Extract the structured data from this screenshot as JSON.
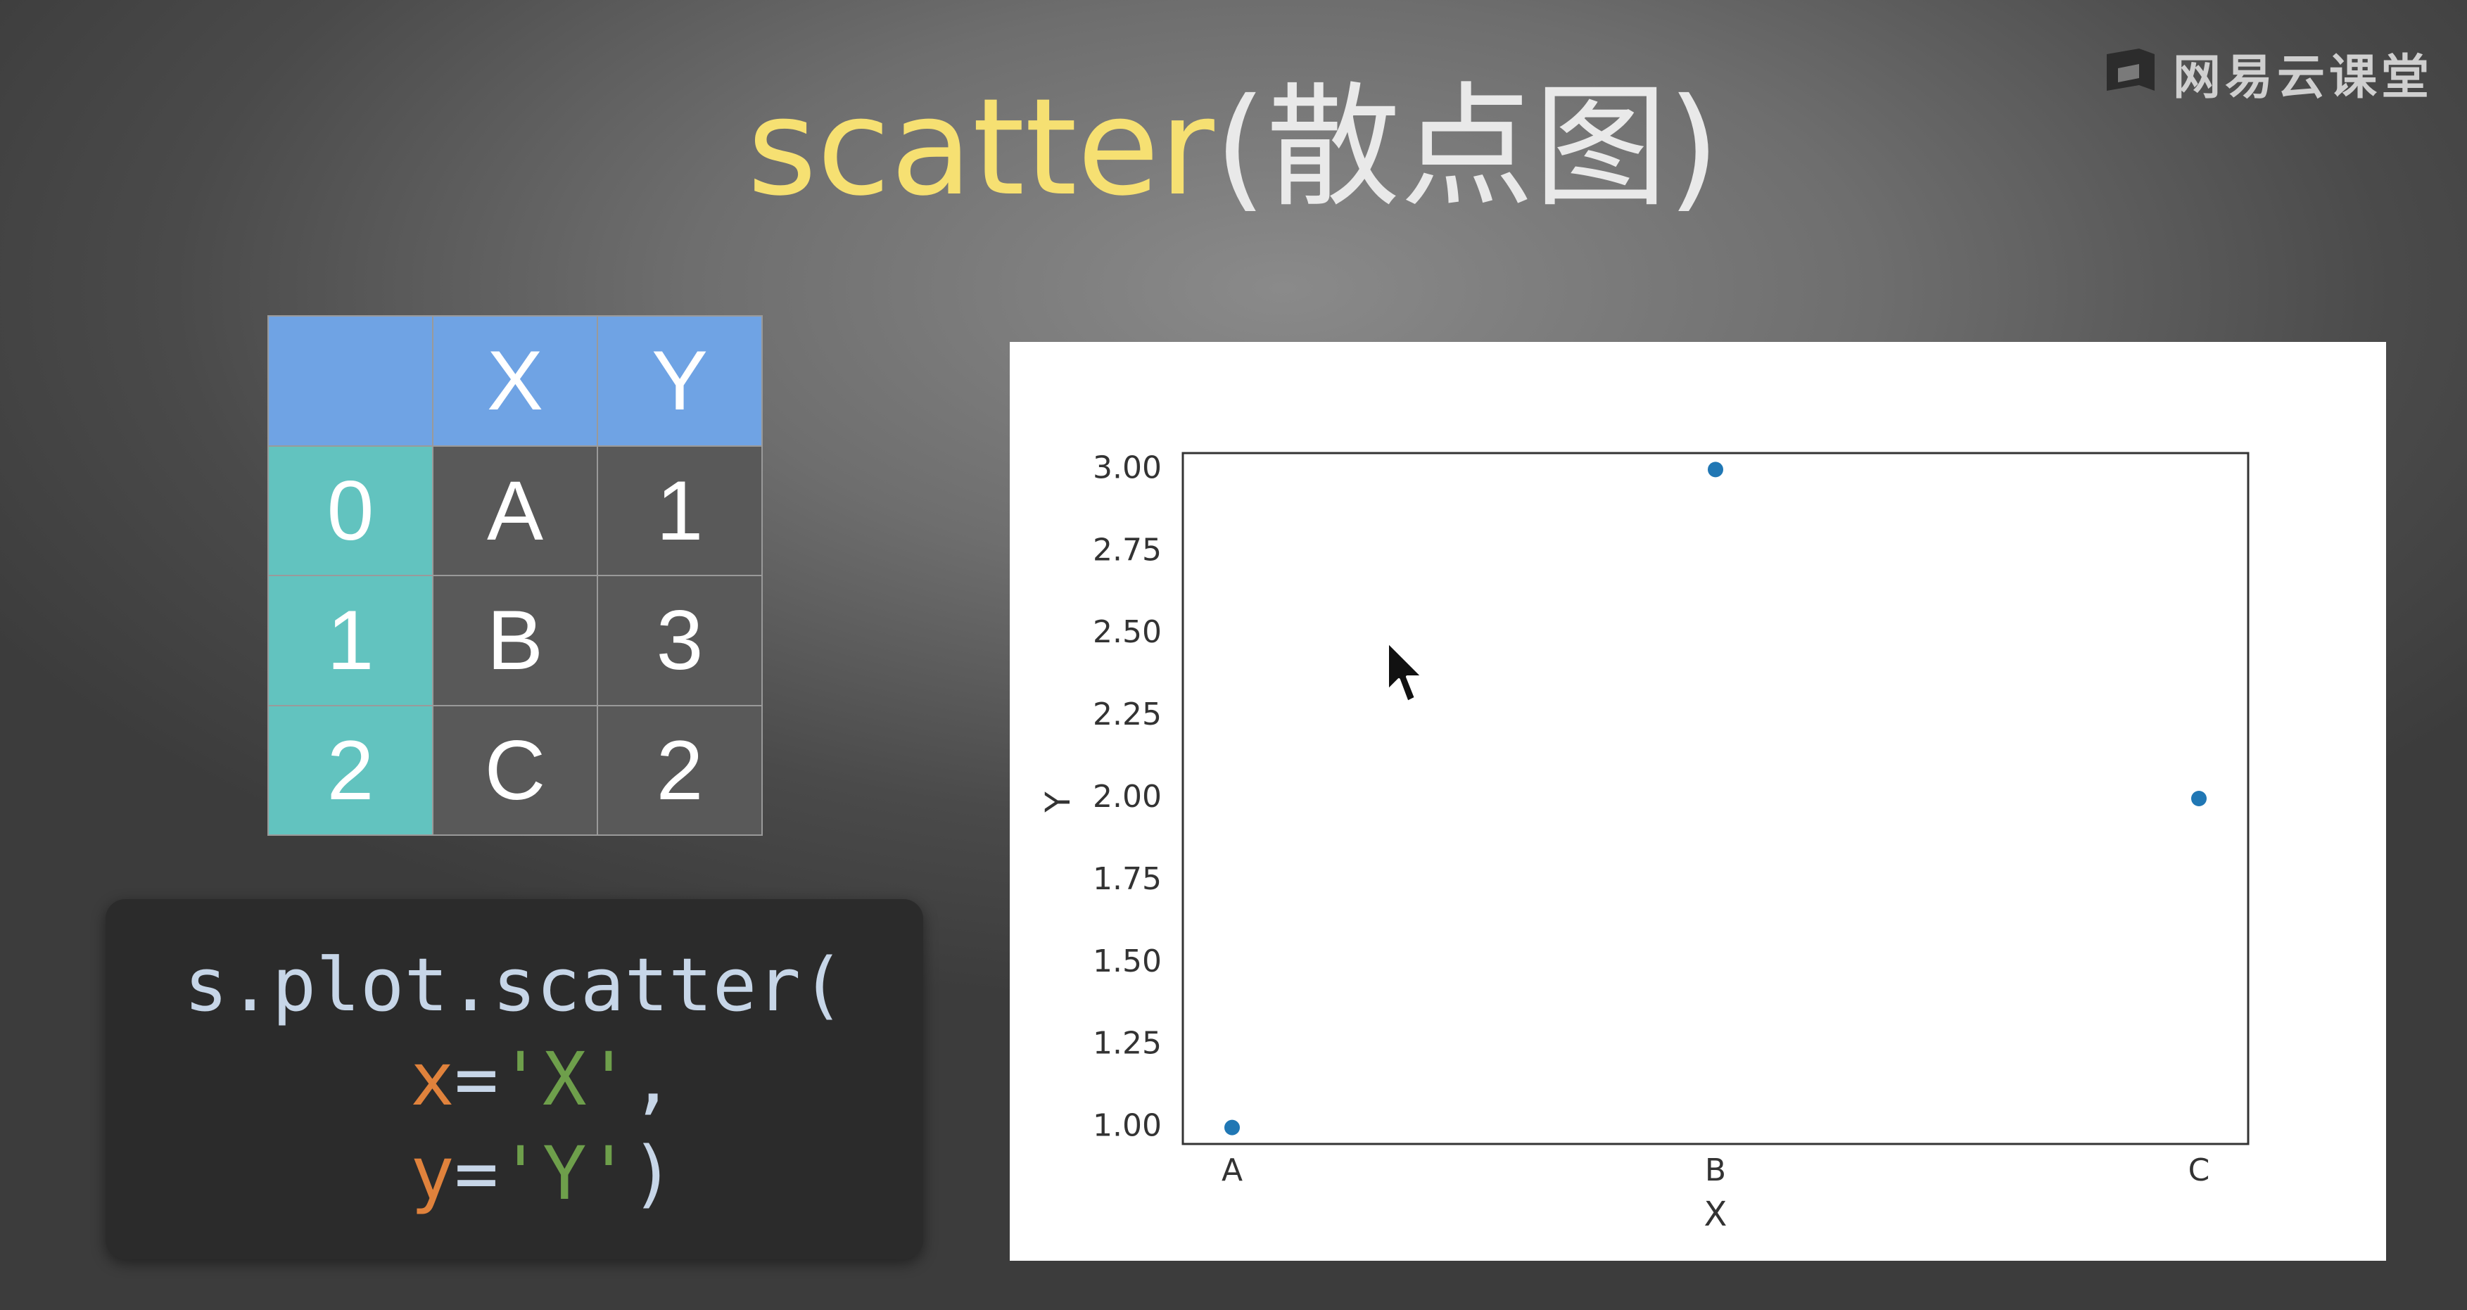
{
  "logo": {
    "text": "网易云课堂",
    "icon": "book-logo-icon"
  },
  "title": {
    "main": "scatter",
    "paren": "(散点图)"
  },
  "table": {
    "columns": [
      "",
      "X",
      "Y"
    ],
    "rows": [
      {
        "index": "0",
        "X": "A",
        "Y": "1"
      },
      {
        "index": "1",
        "X": "B",
        "Y": "3"
      },
      {
        "index": "2",
        "X": "C",
        "Y": "2"
      }
    ]
  },
  "code": {
    "line1": "s.plot.scatter(",
    "line2": {
      "kw": "x",
      "eq": "=",
      "str": "'X'",
      "tail": ","
    },
    "line3": {
      "kw": "y",
      "eq": "=",
      "str": "'Y'",
      "tail": ")"
    }
  },
  "colors": {
    "title": "#f6e072",
    "table_header": "#6fa3e4",
    "table_index": "#62c3bf",
    "point": "#2077b4"
  },
  "chart_data": {
    "type": "scatter",
    "x": [
      "A",
      "B",
      "C"
    ],
    "y": [
      1,
      3,
      2
    ],
    "xlabel": "X",
    "ylabel": "Y",
    "ylim": [
      0.95,
      3.05
    ],
    "yticks": [
      1.0,
      1.25,
      1.5,
      1.75,
      2.0,
      2.25,
      2.5,
      2.75,
      3.0
    ],
    "ytick_labels": [
      "1.00",
      "1.25",
      "1.50",
      "1.75",
      "2.00",
      "2.25",
      "2.50",
      "2.75",
      "3.00"
    ],
    "xtick_labels": [
      "A",
      "B",
      "C"
    ],
    "grid": false
  }
}
